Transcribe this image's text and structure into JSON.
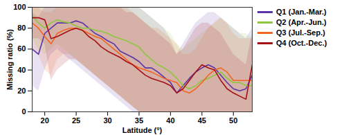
{
  "chart_data": {
    "type": "line",
    "x_label": "Latitude (°)",
    "y_label": "Missing ratio (%)",
    "x": [
      18,
      19,
      20,
      21,
      22,
      23,
      24,
      25,
      26,
      27,
      28,
      29,
      30,
      31,
      32,
      33,
      34,
      35,
      36,
      37,
      38,
      39,
      40,
      41,
      42,
      43,
      44,
      45,
      46,
      47,
      48,
      49,
      50,
      51,
      52,
      53
    ],
    "xlim": [
      18,
      53
    ],
    "xticks": [
      20,
      25,
      30,
      35,
      40,
      45,
      50
    ],
    "ylim": [
      0,
      100
    ],
    "yticks": [
      0,
      20,
      40,
      60,
      80,
      100
    ],
    "legend": "right",
    "series": [
      {
        "name": "Q1 (Jan.-Mar.)",
        "color": "#5a35a8",
        "values": [
          60,
          55,
          75,
          80,
          85,
          85,
          85,
          87,
          85,
          80,
          75,
          72,
          68,
          65,
          58,
          55,
          52,
          48,
          42,
          42,
          38,
          33,
          28,
          18,
          25,
          32,
          38,
          42,
          45,
          42,
          35,
          28,
          22,
          20,
          22,
          35
        ],
        "lower": [
          25,
          20,
          40,
          55,
          60,
          55,
          50,
          45,
          40,
          35,
          30,
          25,
          20,
          15,
          10,
          5,
          0,
          0,
          0,
          0,
          0,
          0,
          0,
          0,
          0,
          0,
          0,
          0,
          0,
          0,
          0,
          0,
          0,
          0,
          0,
          0
        ],
        "upper": [
          95,
          90,
          100,
          100,
          100,
          100,
          100,
          100,
          100,
          100,
          100,
          100,
          100,
          100,
          100,
          100,
          100,
          100,
          95,
          90,
          85,
          80,
          70,
          55,
          65,
          75,
          85,
          90,
          95,
          95,
          90,
          85,
          80,
          75,
          70,
          80
        ]
      },
      {
        "name": "Q2 (Apr.-Jun.)",
        "color": "#8dc63f",
        "values": [
          92,
          85,
          80,
          85,
          88,
          86,
          85,
          82,
          80,
          80,
          78,
          77,
          75,
          72,
          70,
          68,
          65,
          62,
          55,
          50,
          45,
          42,
          38,
          32,
          25,
          22,
          25,
          30,
          32,
          35,
          38,
          32,
          28,
          28,
          25,
          25
        ],
        "lower": [
          70,
          60,
          55,
          60,
          65,
          60,
          55,
          50,
          45,
          40,
          35,
          30,
          25,
          20,
          15,
          10,
          5,
          0,
          0,
          0,
          0,
          0,
          0,
          0,
          0,
          0,
          0,
          0,
          0,
          0,
          0,
          0,
          0,
          0,
          0,
          0
        ],
        "upper": [
          100,
          100,
          100,
          100,
          100,
          100,
          100,
          100,
          100,
          100,
          100,
          100,
          100,
          100,
          100,
          100,
          100,
          100,
          95,
          90,
          85,
          80,
          75,
          65,
          60,
          65,
          70,
          75,
          80,
          85,
          90,
          85,
          80,
          75,
          75,
          70
        ]
      },
      {
        "name": "Q3 (Jul.-Sep.)",
        "color": "#f26522",
        "values": [
          85,
          80,
          72,
          65,
          75,
          78,
          80,
          80,
          78,
          75,
          72,
          70,
          65,
          60,
          55,
          50,
          45,
          42,
          40,
          38,
          35,
          32,
          30,
          28,
          20,
          18,
          22,
          28,
          35,
          40,
          42,
          38,
          30,
          30,
          30,
          30
        ],
        "lower": [
          60,
          55,
          40,
          35,
          50,
          55,
          55,
          50,
          45,
          40,
          35,
          30,
          25,
          20,
          15,
          10,
          5,
          0,
          0,
          0,
          0,
          0,
          0,
          0,
          0,
          0,
          0,
          0,
          0,
          0,
          0,
          0,
          0,
          0,
          0,
          0
        ],
        "upper": [
          100,
          100,
          95,
          95,
          100,
          100,
          100,
          100,
          100,
          100,
          100,
          100,
          100,
          100,
          100,
          100,
          95,
          90,
          85,
          80,
          80,
          75,
          70,
          65,
          55,
          55,
          60,
          70,
          80,
          85,
          90,
          85,
          75,
          70,
          70,
          70
        ]
      },
      {
        "name": "Q4 (Oct.-Dec.)",
        "color": "#a50f15",
        "values": [
          90,
          90,
          88,
          70,
          72,
          75,
          78,
          80,
          78,
          72,
          68,
          62,
          58,
          55,
          52,
          48,
          45,
          40,
          35,
          32,
          30,
          28,
          25,
          18,
          22,
          30,
          38,
          45,
          42,
          40,
          30,
          22,
          18,
          15,
          12,
          45
        ],
        "lower": [
          70,
          70,
          65,
          30,
          40,
          45,
          50,
          50,
          45,
          40,
          35,
          30,
          25,
          20,
          15,
          10,
          5,
          0,
          0,
          0,
          0,
          0,
          0,
          0,
          0,
          0,
          0,
          0,
          0,
          0,
          0,
          0,
          0,
          0,
          0,
          0
        ],
        "upper": [
          100,
          100,
          100,
          100,
          100,
          100,
          100,
          100,
          100,
          100,
          100,
          100,
          100,
          100,
          100,
          95,
          95,
          90,
          85,
          80,
          75,
          70,
          65,
          55,
          60,
          70,
          80,
          85,
          85,
          80,
          75,
          65,
          55,
          50,
          45,
          75
        ]
      }
    ]
  }
}
